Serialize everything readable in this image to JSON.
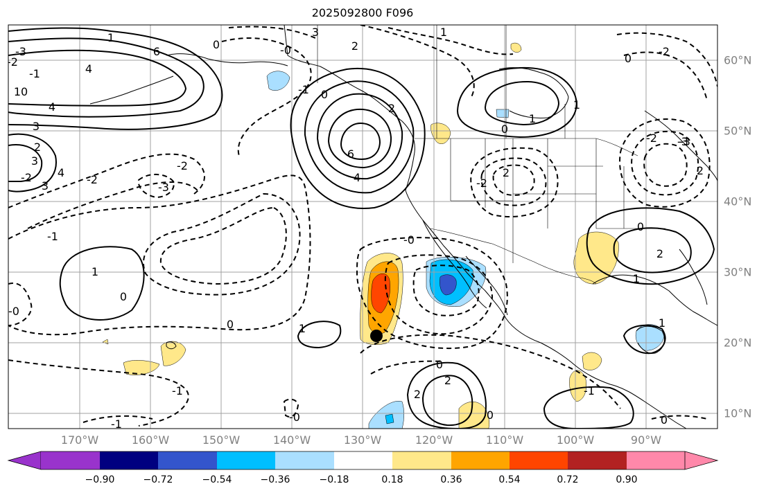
{
  "title": "2025092800 F096",
  "lon_labels": [
    "170°W",
    "160°W",
    "150°W",
    "140°W",
    "130°W",
    "120°W",
    "110°W",
    "100°W",
    "90°W"
  ],
  "lat_labels": [
    "60°N",
    "50°N",
    "40°N",
    "30°N",
    "20°N",
    "10°N"
  ],
  "colorbar": {
    "tick_labels": [
      "−0.90",
      "−0.72",
      "−0.54",
      "−0.36",
      "−0.18",
      "0.18",
      "0.36",
      "0.54",
      "0.72",
      "0.90"
    ],
    "colors": [
      "#9933cc",
      "#000080",
      "#3355cc",
      "#00bfff",
      "#aadfff",
      "#ffffff",
      "#ffe88a",
      "#ffa500",
      "#ff4500",
      "#b22222",
      "#ff88aa"
    ]
  },
  "contour_labels": [
    "3",
    "1",
    "2",
    "6",
    "0",
    "4",
    "2",
    "-1",
    "-0",
    "-3",
    "6",
    "4",
    "-2",
    "-1",
    "-2",
    "-1",
    "0",
    "2",
    "1",
    "0",
    "-2",
    "-2",
    "-3",
    "0",
    "-2",
    "1",
    "0",
    "2",
    "1",
    "1",
    "1",
    "0",
    "-1",
    "2",
    "0",
    "-0",
    "-1",
    "2",
    "1",
    "0",
    "0",
    "0",
    "-0",
    "-1",
    "10",
    "4",
    "3",
    "2",
    "3",
    "4",
    "-2",
    "3",
    "1",
    "-3",
    "2",
    "-3",
    "-2",
    "-0"
  ],
  "marker": "storm-center",
  "colors": {
    "contour": "#000000",
    "coast": "#000000",
    "grid": "#a0a0a0",
    "axis_text": "#808080"
  }
}
